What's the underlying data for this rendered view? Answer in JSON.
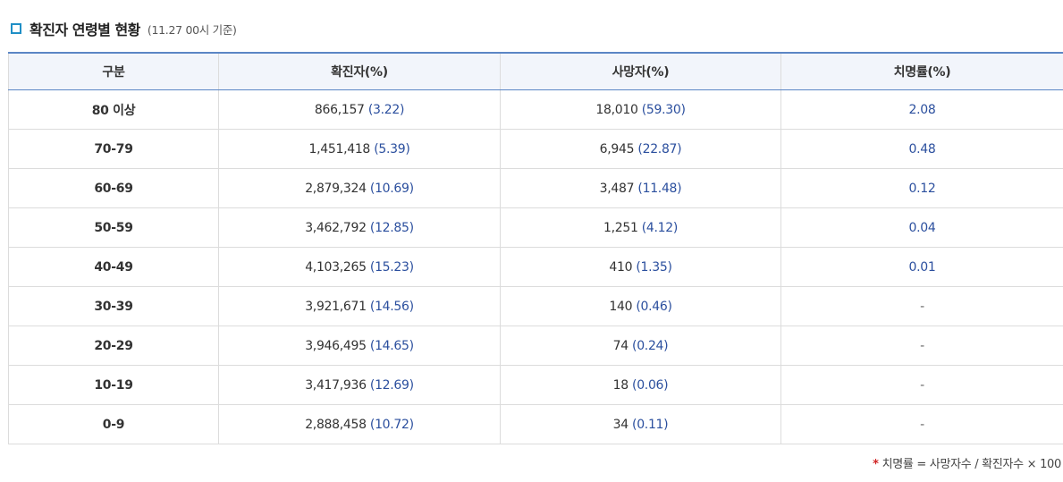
{
  "header": {
    "title": "확진자 연령별 현황",
    "note": "(11.27 00시 기준)"
  },
  "table": {
    "columns": [
      "구분",
      "확진자(%)",
      "사망자(%)",
      "치명률(%)"
    ],
    "rows": [
      {
        "age": "80 이상",
        "cases": "866,157",
        "cases_pct": "(3.22)",
        "deaths": "18,010",
        "deaths_pct": "(59.30)",
        "fatality": "2.08"
      },
      {
        "age": "70-79",
        "cases": "1,451,418",
        "cases_pct": "(5.39)",
        "deaths": "6,945",
        "deaths_pct": "(22.87)",
        "fatality": "0.48"
      },
      {
        "age": "60-69",
        "cases": "2,879,324",
        "cases_pct": "(10.69)",
        "deaths": "3,487",
        "deaths_pct": "(11.48)",
        "fatality": "0.12"
      },
      {
        "age": "50-59",
        "cases": "3,462,792",
        "cases_pct": "(12.85)",
        "deaths": "1,251",
        "deaths_pct": "(4.12)",
        "fatality": "0.04"
      },
      {
        "age": "40-49",
        "cases": "4,103,265",
        "cases_pct": "(15.23)",
        "deaths": "410",
        "deaths_pct": "(1.35)",
        "fatality": "0.01"
      },
      {
        "age": "30-39",
        "cases": "3,921,671",
        "cases_pct": "(14.56)",
        "deaths": "140",
        "deaths_pct": "(0.46)",
        "fatality": "-"
      },
      {
        "age": "20-29",
        "cases": "3,946,495",
        "cases_pct": "(14.65)",
        "deaths": "74",
        "deaths_pct": "(0.24)",
        "fatality": "-"
      },
      {
        "age": "10-19",
        "cases": "3,417,936",
        "cases_pct": "(12.69)",
        "deaths": "18",
        "deaths_pct": "(0.06)",
        "fatality": "-"
      },
      {
        "age": "0-9",
        "cases": "2,888,458",
        "cases_pct": "(10.72)",
        "deaths": "34",
        "deaths_pct": "(0.11)",
        "fatality": "-"
      }
    ]
  },
  "footnote": {
    "star": "*",
    "text": "치명률 = 사망자수 / 확진자수 × 100"
  },
  "colors": {
    "accent": "#1f8fc6",
    "header_border": "#5b86c5",
    "percent_text": "#2b4f9e",
    "footnote_star": "#d02424"
  },
  "icons": {
    "title_marker": "square-bullet-icon"
  }
}
